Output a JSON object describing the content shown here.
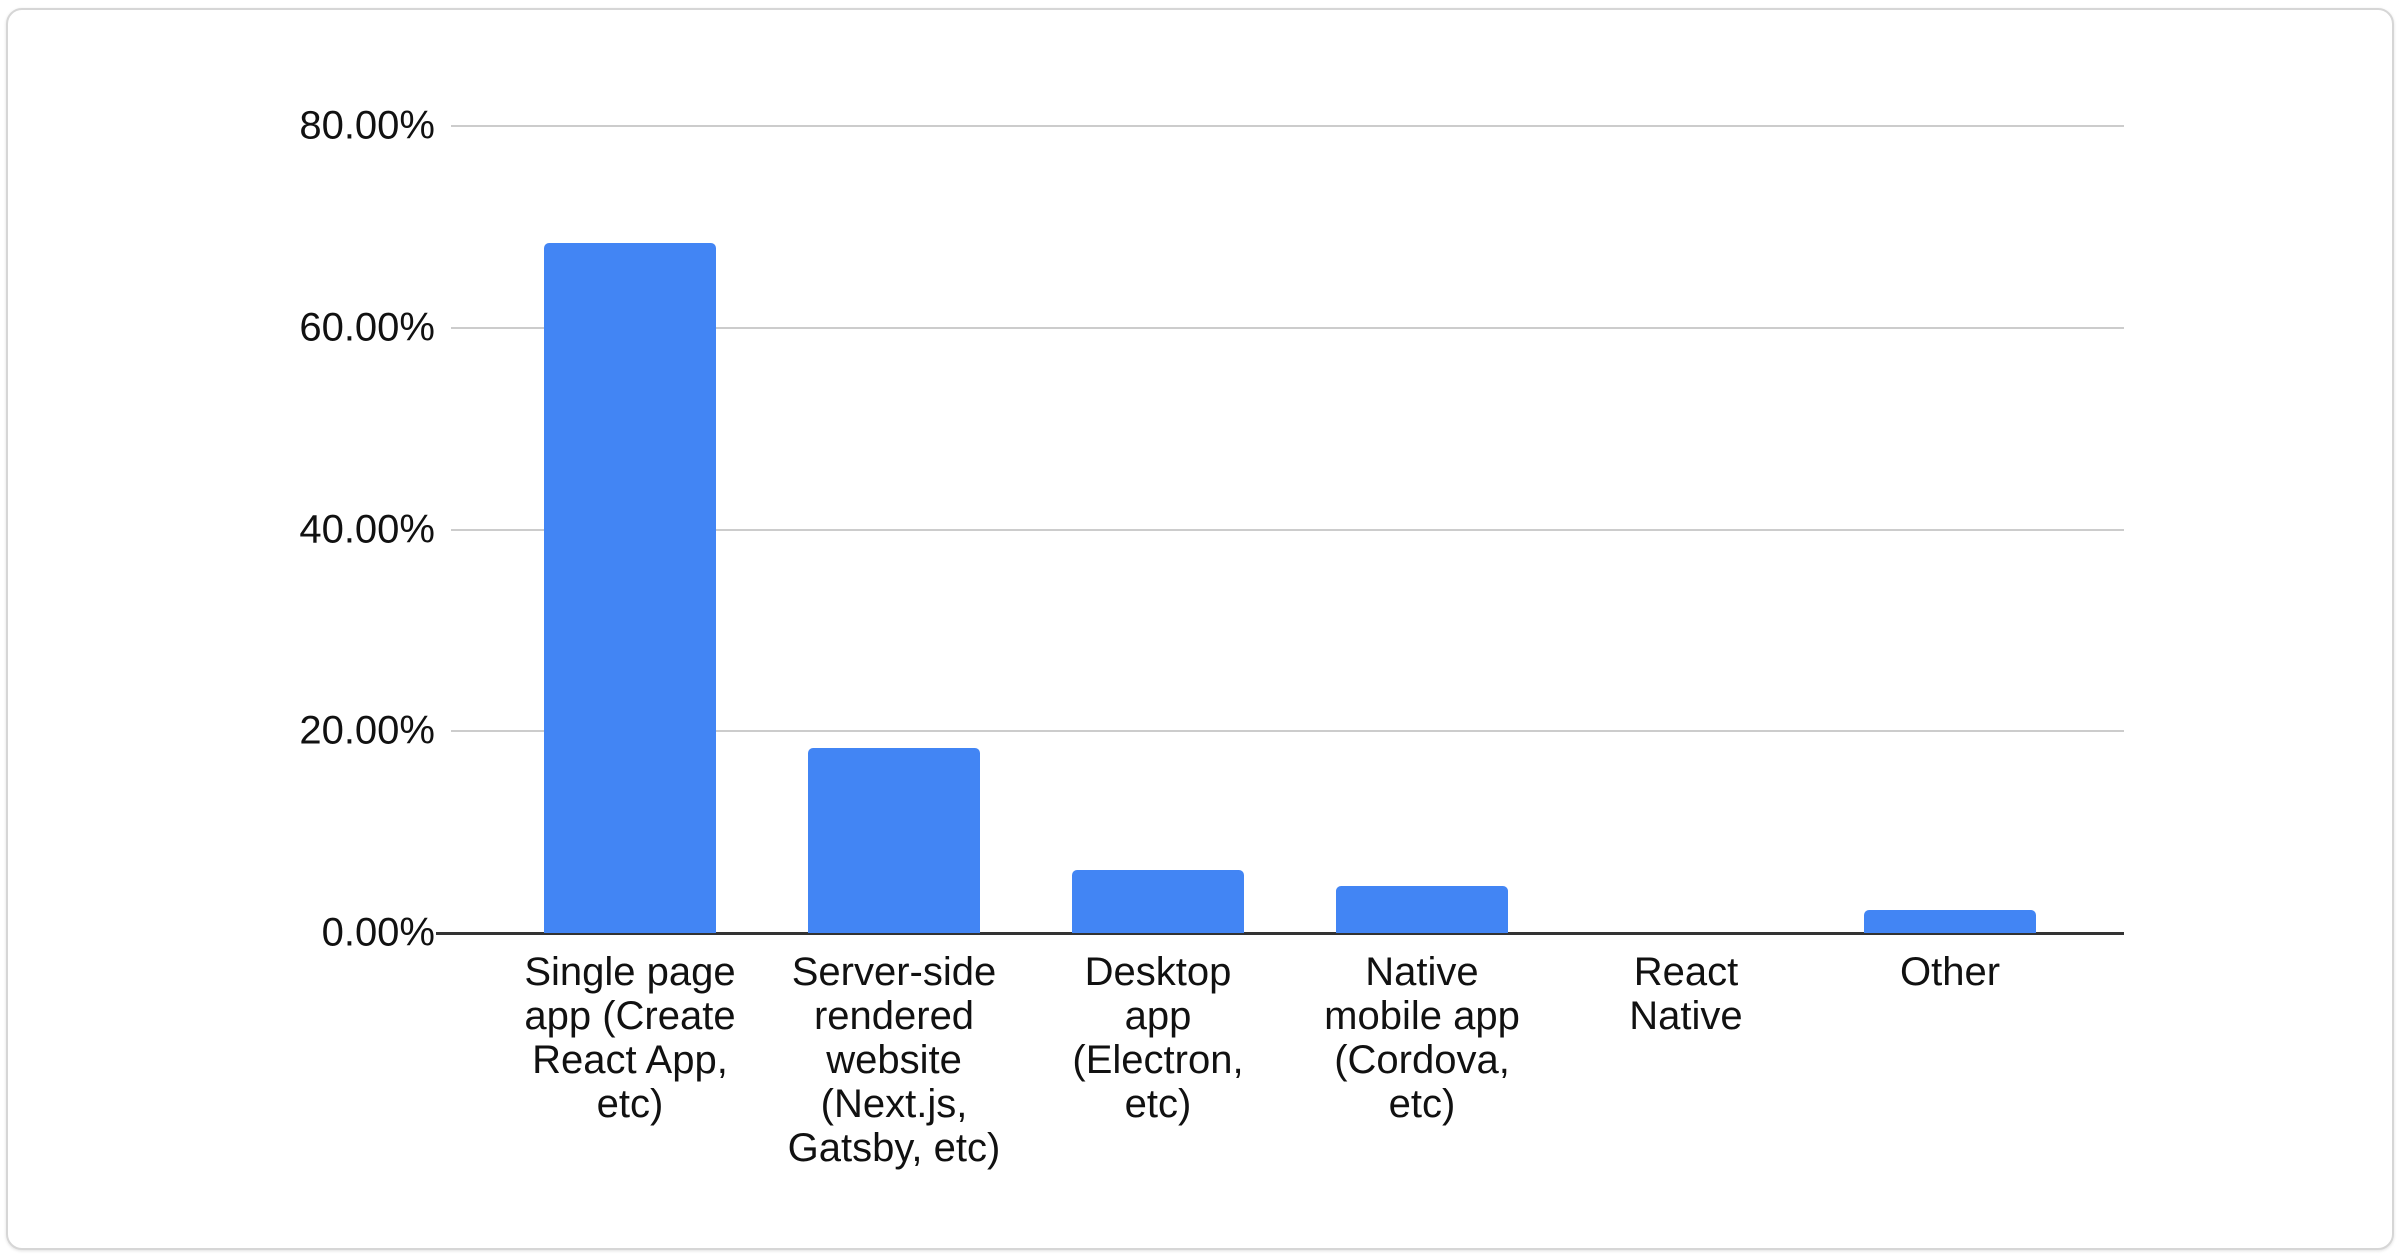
{
  "card": {
    "background": "#ffffff",
    "border_color": "#d6d6d6"
  },
  "chart_data": {
    "type": "bar",
    "categories": [
      "Single page app (Create React App, etc)",
      "Server-side rendered website (Next.js, Gatsby, etc)",
      "Desktop app (Electron, etc)",
      "Native mobile app (Cordova, etc)",
      "React Native",
      "Other"
    ],
    "category_lines": [
      [
        "Single page",
        "app (Create",
        "React App,",
        "etc)"
      ],
      [
        "Server-side",
        "rendered",
        "website",
        "(Next.js,",
        "Gatsby, etc)"
      ],
      [
        "Desktop",
        "app",
        "(Electron,",
        "etc)"
      ],
      [
        "Native",
        "mobile app",
        "(Cordova,",
        "etc)"
      ],
      [
        "React",
        "Native"
      ],
      [
        "Other"
      ]
    ],
    "values": [
      68.4,
      18.3,
      6.2,
      4.7,
      0,
      2.3
    ],
    "y_ticks": [
      {
        "label": "80.00%",
        "value": 80
      },
      {
        "label": "60.00%",
        "value": 60
      },
      {
        "label": "40.00%",
        "value": 40
      },
      {
        "label": "20.00%",
        "value": 20
      },
      {
        "label": "0.00%",
        "value": 0
      }
    ],
    "ylim": [
      0,
      80
    ],
    "xlabel": "",
    "ylabel": "",
    "grid": true,
    "legend": "none",
    "colors": {
      "bar": "#4285f4",
      "gridline": "#cccccc",
      "axis": "#333333",
      "label": "#111111"
    }
  }
}
